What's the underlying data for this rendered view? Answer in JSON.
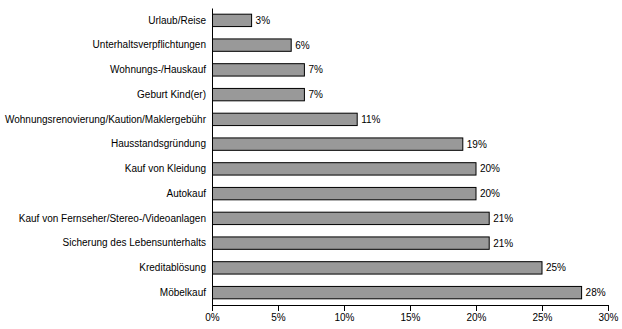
{
  "chart_data": {
    "type": "bar",
    "orientation": "horizontal",
    "categories": [
      "Urlaub/Reise",
      "Unterhaltsverpflichtungen",
      "Wohnungs-/Hauskauf",
      "Geburt Kind(er)",
      "Wohnungsrenovierung/Kaution/Maklergebühr",
      "Hausstandsgründung",
      "Kauf von Kleidung",
      "Autokauf",
      "Kauf von Fernseher/Stereo-/Videoanlagen",
      "Sicherung des Lebensunterhalts",
      "Kreditablösung",
      "Möbelkauf"
    ],
    "values": [
      3,
      6,
      7,
      7,
      11,
      19,
      20,
      20,
      21,
      21,
      25,
      28
    ],
    "value_labels": [
      "3%",
      "6%",
      "7%",
      "7%",
      "11%",
      "19%",
      "20%",
      "20%",
      "21%",
      "21%",
      "25%",
      "28%"
    ],
    "color": "#999999",
    "data_labels": true,
    "grid": false,
    "xlim": [
      0,
      30
    ],
    "xticks": [
      {
        "value": 0,
        "label": "0%"
      },
      {
        "value": 5,
        "label": "5%"
      },
      {
        "value": 10,
        "label": "10%"
      },
      {
        "value": 15,
        "label": "15%"
      },
      {
        "value": 20,
        "label": "20%"
      },
      {
        "value": 25,
        "label": "25%"
      },
      {
        "value": 30,
        "label": "30%"
      }
    ]
  }
}
